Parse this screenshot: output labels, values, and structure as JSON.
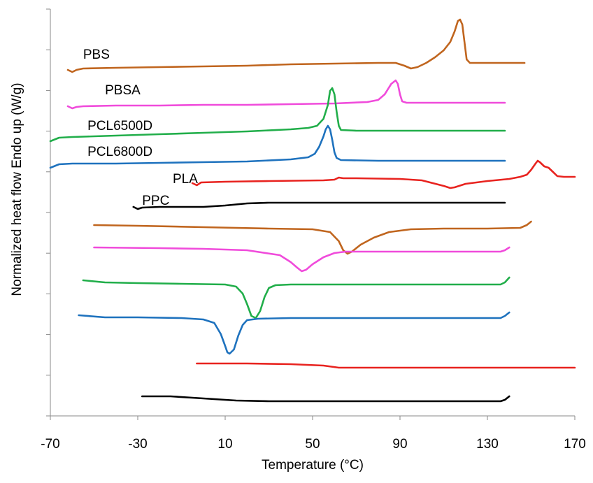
{
  "chart_data": {
    "type": "line",
    "title": "",
    "xlabel": "Temperature (°C)",
    "ylabel": "Normalized heat flow Endo up (W/g)",
    "xlim": [
      -70,
      170
    ],
    "x_ticks": [
      "-70",
      "-30",
      "10",
      "50",
      "90",
      "130",
      "170"
    ],
    "y_ticks_labeled": false,
    "grid": false,
    "legend": "none",
    "series": [
      {
        "name": "PBS",
        "section": "heating",
        "color": "#C0651E",
        "points": [
          [
            -62,
            100
          ],
          [
            -60,
            103
          ],
          [
            -58,
            100
          ],
          [
            -55,
            98
          ],
          [
            -40,
            97
          ],
          [
            -20,
            96
          ],
          [
            0,
            95
          ],
          [
            20,
            94
          ],
          [
            40,
            92
          ],
          [
            60,
            91
          ],
          [
            80,
            90
          ],
          [
            88,
            90
          ],
          [
            92,
            94
          ],
          [
            95,
            98
          ],
          [
            98,
            96
          ],
          [
            102,
            90
          ],
          [
            106,
            82
          ],
          [
            110,
            72
          ],
          [
            113,
            60
          ],
          [
            115,
            45
          ],
          [
            116.5,
            30
          ],
          [
            117.5,
            28
          ],
          [
            118.5,
            35
          ],
          [
            119.5,
            60
          ],
          [
            120.5,
            85
          ],
          [
            122,
            90
          ],
          [
            130,
            90
          ],
          [
            140,
            90
          ],
          [
            147,
            90
          ]
        ]
      },
      {
        "name": "PBSA",
        "section": "heating",
        "color": "#F04BDB",
        "points": [
          [
            -62,
            152
          ],
          [
            -60,
            155
          ],
          [
            -58,
            153
          ],
          [
            -55,
            152
          ],
          [
            -40,
            151
          ],
          [
            -20,
            151
          ],
          [
            0,
            150
          ],
          [
            20,
            150
          ],
          [
            40,
            149
          ],
          [
            60,
            148
          ],
          [
            75,
            146
          ],
          [
            80,
            143
          ],
          [
            83,
            135
          ],
          [
            86,
            120
          ],
          [
            88,
            115
          ],
          [
            89,
            120
          ],
          [
            90,
            135
          ],
          [
            91,
            145
          ],
          [
            93,
            147
          ],
          [
            110,
            147
          ],
          [
            130,
            147
          ],
          [
            138,
            147
          ]
        ]
      },
      {
        "name": "PCL6500D",
        "section": "heating",
        "color": "#21AE4A",
        "points": [
          [
            -70,
            202
          ],
          [
            -66,
            197
          ],
          [
            -60,
            196
          ],
          [
            -40,
            194
          ],
          [
            -20,
            192
          ],
          [
            0,
            190
          ],
          [
            20,
            188
          ],
          [
            40,
            185
          ],
          [
            48,
            183
          ],
          [
            52,
            180
          ],
          [
            55,
            170
          ],
          [
            57,
            150
          ],
          [
            58,
            130
          ],
          [
            59,
            126
          ],
          [
            60,
            135
          ],
          [
            61,
            160
          ],
          [
            62,
            180
          ],
          [
            63,
            186
          ],
          [
            70,
            187
          ],
          [
            90,
            187
          ],
          [
            110,
            187
          ],
          [
            138,
            187
          ]
        ]
      },
      {
        "name": "PCL6800D",
        "section": "heating",
        "color": "#1E72BE",
        "points": [
          [
            -70,
            240
          ],
          [
            -66,
            235
          ],
          [
            -60,
            234
          ],
          [
            -40,
            234
          ],
          [
            -20,
            233
          ],
          [
            0,
            232
          ],
          [
            20,
            231
          ],
          [
            40,
            228
          ],
          [
            48,
            225
          ],
          [
            51,
            220
          ],
          [
            53,
            210
          ],
          [
            55,
            195
          ],
          [
            56,
            185
          ],
          [
            57,
            180
          ],
          [
            58,
            185
          ],
          [
            59,
            200
          ],
          [
            60,
            218
          ],
          [
            61,
            226
          ],
          [
            63,
            229
          ],
          [
            80,
            230
          ],
          [
            110,
            230
          ],
          [
            138,
            230
          ]
        ]
      },
      {
        "name": "PLA",
        "section": "heating",
        "color": "#E8231F",
        "points": [
          [
            -5,
            262
          ],
          [
            -3,
            265
          ],
          [
            -1,
            261
          ],
          [
            10,
            260
          ],
          [
            30,
            259
          ],
          [
            55,
            258
          ],
          [
            60,
            257
          ],
          [
            62,
            254
          ],
          [
            64,
            255
          ],
          [
            70,
            255
          ],
          [
            90,
            256
          ],
          [
            100,
            258
          ],
          [
            105,
            262
          ],
          [
            110,
            266
          ],
          [
            113,
            269
          ],
          [
            115,
            268
          ],
          [
            120,
            263
          ],
          [
            130,
            259
          ],
          [
            140,
            256
          ],
          [
            145,
            253
          ],
          [
            148,
            250
          ],
          [
            150,
            243
          ],
          [
            152,
            234
          ],
          [
            153,
            230
          ],
          [
            154,
            232
          ],
          [
            156,
            238
          ],
          [
            158,
            240
          ],
          [
            160,
            246
          ],
          [
            162,
            252
          ],
          [
            165,
            253
          ],
          [
            170,
            253
          ]
        ]
      },
      {
        "name": "PPC",
        "section": "heating",
        "color": "#000000",
        "points": [
          [
            -32,
            296
          ],
          [
            -30,
            299
          ],
          [
            -28,
            297
          ],
          [
            -20,
            296
          ],
          [
            0,
            296
          ],
          [
            10,
            294
          ],
          [
            20,
            291
          ],
          [
            30,
            290
          ],
          [
            60,
            290
          ],
          [
            100,
            290
          ],
          [
            138,
            290
          ]
        ]
      },
      {
        "name": "",
        "section": "cooling",
        "color": "#C0651E",
        "points": [
          [
            -50,
            322
          ],
          [
            -30,
            323
          ],
          [
            0,
            325
          ],
          [
            30,
            327
          ],
          [
            50,
            328
          ],
          [
            58,
            332
          ],
          [
            62,
            345
          ],
          [
            64,
            358
          ],
          [
            66,
            363
          ],
          [
            68,
            360
          ],
          [
            72,
            350
          ],
          [
            78,
            340
          ],
          [
            85,
            332
          ],
          [
            95,
            328
          ],
          [
            110,
            327
          ],
          [
            130,
            327
          ],
          [
            145,
            326
          ],
          [
            148,
            322
          ],
          [
            150,
            317
          ]
        ]
      },
      {
        "name": "",
        "section": "cooling",
        "color": "#F04BDB",
        "points": [
          [
            -50,
            354
          ],
          [
            -20,
            355
          ],
          [
            0,
            356
          ],
          [
            20,
            358
          ],
          [
            35,
            365
          ],
          [
            40,
            375
          ],
          [
            43,
            383
          ],
          [
            45,
            388
          ],
          [
            47,
            386
          ],
          [
            50,
            378
          ],
          [
            55,
            368
          ],
          [
            60,
            362
          ],
          [
            65,
            360
          ],
          [
            80,
            360
          ],
          [
            110,
            360
          ],
          [
            136,
            360
          ],
          [
            138,
            358
          ],
          [
            140,
            354
          ]
        ]
      },
      {
        "name": "",
        "section": "cooling",
        "color": "#21AE4A",
        "points": [
          [
            -55,
            401
          ],
          [
            -45,
            404
          ],
          [
            -30,
            405
          ],
          [
            -10,
            406
          ],
          [
            10,
            407
          ],
          [
            15,
            410
          ],
          [
            18,
            420
          ],
          [
            20,
            435
          ],
          [
            22,
            452
          ],
          [
            24,
            455
          ],
          [
            26,
            445
          ],
          [
            28,
            425
          ],
          [
            30,
            412
          ],
          [
            33,
            408
          ],
          [
            40,
            407
          ],
          [
            70,
            407
          ],
          [
            100,
            407
          ],
          [
            136,
            407
          ],
          [
            138,
            404
          ],
          [
            140,
            397
          ]
        ]
      },
      {
        "name": "",
        "section": "cooling",
        "color": "#1E72BE",
        "points": [
          [
            -57,
            451
          ],
          [
            -45,
            454
          ],
          [
            -30,
            454
          ],
          [
            -10,
            455
          ],
          [
            0,
            457
          ],
          [
            5,
            462
          ],
          [
            8,
            478
          ],
          [
            10,
            495
          ],
          [
            11,
            504
          ],
          [
            12,
            506
          ],
          [
            14,
            500
          ],
          [
            16,
            480
          ],
          [
            18,
            465
          ],
          [
            20,
            458
          ],
          [
            25,
            456
          ],
          [
            40,
            455
          ],
          [
            70,
            455
          ],
          [
            100,
            455
          ],
          [
            136,
            455
          ],
          [
            138,
            452
          ],
          [
            140,
            447
          ]
        ]
      },
      {
        "name": "",
        "section": "cooling",
        "color": "#E8231F",
        "points": [
          [
            -3,
            520
          ],
          [
            20,
            520
          ],
          [
            40,
            521
          ],
          [
            55,
            523
          ],
          [
            62,
            526
          ],
          [
            70,
            526
          ],
          [
            100,
            526
          ],
          [
            140,
            526
          ],
          [
            170,
            526
          ]
        ]
      },
      {
        "name": "",
        "section": "cooling",
        "color": "#000000",
        "points": [
          [
            -28,
            567
          ],
          [
            -15,
            567
          ],
          [
            -5,
            569
          ],
          [
            5,
            571
          ],
          [
            15,
            573
          ],
          [
            30,
            574
          ],
          [
            60,
            574
          ],
          [
            100,
            574
          ],
          [
            136,
            574
          ],
          [
            138,
            572
          ],
          [
            140,
            567
          ]
        ]
      }
    ]
  }
}
